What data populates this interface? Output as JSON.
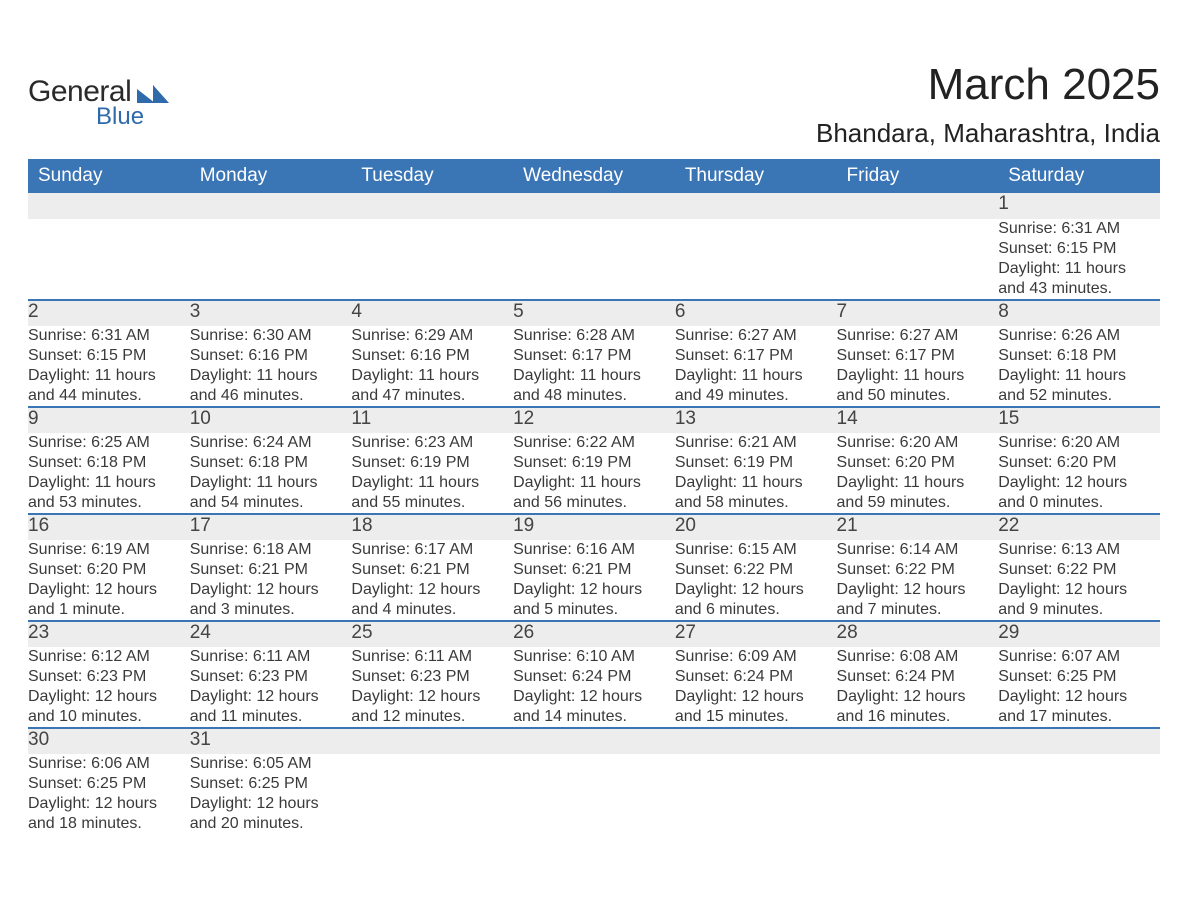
{
  "brand": {
    "general": "General",
    "blue": "Blue",
    "accent_color": "#2f6aab"
  },
  "title": "March 2025",
  "location": "Bhandara, Maharashtra, India",
  "header_bg": "#3a75b5",
  "daynum_bg": "#ededed",
  "divider_color": "#3a75b5",
  "text_color": "#333333",
  "days": [
    "Sunday",
    "Monday",
    "Tuesday",
    "Wednesday",
    "Thursday",
    "Friday",
    "Saturday"
  ],
  "weeks": [
    {
      "num": [
        "",
        "",
        "",
        "",
        "",
        "",
        "1"
      ],
      "rise": [
        "",
        "",
        "",
        "",
        "",
        "",
        "Sunrise: 6:31 AM"
      ],
      "set": [
        "",
        "",
        "",
        "",
        "",
        "",
        "Sunset: 6:15 PM"
      ],
      "dl1": [
        "",
        "",
        "",
        "",
        "",
        "",
        "Daylight: 11 hours"
      ],
      "dl2": [
        "",
        "",
        "",
        "",
        "",
        "",
        "and 43 minutes."
      ]
    },
    {
      "num": [
        "2",
        "3",
        "4",
        "5",
        "6",
        "7",
        "8"
      ],
      "rise": [
        "Sunrise: 6:31 AM",
        "Sunrise: 6:30 AM",
        "Sunrise: 6:29 AM",
        "Sunrise: 6:28 AM",
        "Sunrise: 6:27 AM",
        "Sunrise: 6:27 AM",
        "Sunrise: 6:26 AM"
      ],
      "set": [
        "Sunset: 6:15 PM",
        "Sunset: 6:16 PM",
        "Sunset: 6:16 PM",
        "Sunset: 6:17 PM",
        "Sunset: 6:17 PM",
        "Sunset: 6:17 PM",
        "Sunset: 6:18 PM"
      ],
      "dl1": [
        "Daylight: 11 hours",
        "Daylight: 11 hours",
        "Daylight: 11 hours",
        "Daylight: 11 hours",
        "Daylight: 11 hours",
        "Daylight: 11 hours",
        "Daylight: 11 hours"
      ],
      "dl2": [
        "and 44 minutes.",
        "and 46 minutes.",
        "and 47 minutes.",
        "and 48 minutes.",
        "and 49 minutes.",
        "and 50 minutes.",
        "and 52 minutes."
      ]
    },
    {
      "num": [
        "9",
        "10",
        "11",
        "12",
        "13",
        "14",
        "15"
      ],
      "rise": [
        "Sunrise: 6:25 AM",
        "Sunrise: 6:24 AM",
        "Sunrise: 6:23 AM",
        "Sunrise: 6:22 AM",
        "Sunrise: 6:21 AM",
        "Sunrise: 6:20 AM",
        "Sunrise: 6:20 AM"
      ],
      "set": [
        "Sunset: 6:18 PM",
        "Sunset: 6:18 PM",
        "Sunset: 6:19 PM",
        "Sunset: 6:19 PM",
        "Sunset: 6:19 PM",
        "Sunset: 6:20 PM",
        "Sunset: 6:20 PM"
      ],
      "dl1": [
        "Daylight: 11 hours",
        "Daylight: 11 hours",
        "Daylight: 11 hours",
        "Daylight: 11 hours",
        "Daylight: 11 hours",
        "Daylight: 11 hours",
        "Daylight: 12 hours"
      ],
      "dl2": [
        "and 53 minutes.",
        "and 54 minutes.",
        "and 55 minutes.",
        "and 56 minutes.",
        "and 58 minutes.",
        "and 59 minutes.",
        "and 0 minutes."
      ]
    },
    {
      "num": [
        "16",
        "17",
        "18",
        "19",
        "20",
        "21",
        "22"
      ],
      "rise": [
        "Sunrise: 6:19 AM",
        "Sunrise: 6:18 AM",
        "Sunrise: 6:17 AM",
        "Sunrise: 6:16 AM",
        "Sunrise: 6:15 AM",
        "Sunrise: 6:14 AM",
        "Sunrise: 6:13 AM"
      ],
      "set": [
        "Sunset: 6:20 PM",
        "Sunset: 6:21 PM",
        "Sunset: 6:21 PM",
        "Sunset: 6:21 PM",
        "Sunset: 6:22 PM",
        "Sunset: 6:22 PM",
        "Sunset: 6:22 PM"
      ],
      "dl1": [
        "Daylight: 12 hours",
        "Daylight: 12 hours",
        "Daylight: 12 hours",
        "Daylight: 12 hours",
        "Daylight: 12 hours",
        "Daylight: 12 hours",
        "Daylight: 12 hours"
      ],
      "dl2": [
        "and 1 minute.",
        "and 3 minutes.",
        "and 4 minutes.",
        "and 5 minutes.",
        "and 6 minutes.",
        "and 7 minutes.",
        "and 9 minutes."
      ]
    },
    {
      "num": [
        "23",
        "24",
        "25",
        "26",
        "27",
        "28",
        "29"
      ],
      "rise": [
        "Sunrise: 6:12 AM",
        "Sunrise: 6:11 AM",
        "Sunrise: 6:11 AM",
        "Sunrise: 6:10 AM",
        "Sunrise: 6:09 AM",
        "Sunrise: 6:08 AM",
        "Sunrise: 6:07 AM"
      ],
      "set": [
        "Sunset: 6:23 PM",
        "Sunset: 6:23 PM",
        "Sunset: 6:23 PM",
        "Sunset: 6:24 PM",
        "Sunset: 6:24 PM",
        "Sunset: 6:24 PM",
        "Sunset: 6:25 PM"
      ],
      "dl1": [
        "Daylight: 12 hours",
        "Daylight: 12 hours",
        "Daylight: 12 hours",
        "Daylight: 12 hours",
        "Daylight: 12 hours",
        "Daylight: 12 hours",
        "Daylight: 12 hours"
      ],
      "dl2": [
        "and 10 minutes.",
        "and 11 minutes.",
        "and 12 minutes.",
        "and 14 minutes.",
        "and 15 minutes.",
        "and 16 minutes.",
        "and 17 minutes."
      ]
    },
    {
      "num": [
        "30",
        "31",
        "",
        "",
        "",
        "",
        ""
      ],
      "rise": [
        "Sunrise: 6:06 AM",
        "Sunrise: 6:05 AM",
        "",
        "",
        "",
        "",
        ""
      ],
      "set": [
        "Sunset: 6:25 PM",
        "Sunset: 6:25 PM",
        "",
        "",
        "",
        "",
        ""
      ],
      "dl1": [
        "Daylight: 12 hours",
        "Daylight: 12 hours",
        "",
        "",
        "",
        "",
        ""
      ],
      "dl2": [
        "and 18 minutes.",
        "and 20 minutes.",
        "",
        "",
        "",
        "",
        ""
      ]
    }
  ]
}
